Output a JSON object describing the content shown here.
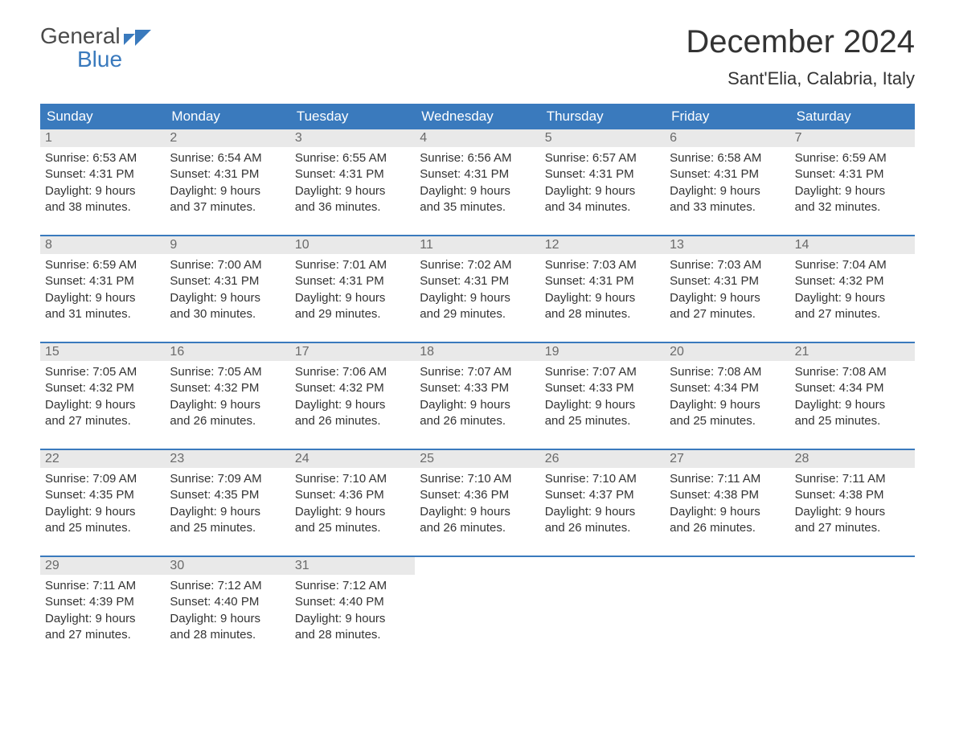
{
  "logo": {
    "line1": "General",
    "line2": "Blue"
  },
  "header": {
    "month_title": "December 2024",
    "location": "Sant'Elia, Calabria, Italy"
  },
  "colors": {
    "header_bg": "#3a7abd",
    "header_text": "#ffffff",
    "daynum_bg": "#e9e9e9",
    "daynum_text": "#6a6a6a",
    "body_text": "#333333",
    "week_border": "#3a7abd",
    "page_bg": "#ffffff"
  },
  "typography": {
    "month_fontsize": 40,
    "location_fontsize": 22,
    "dow_fontsize": 17,
    "daynum_fontsize": 16,
    "daybody_fontsize": 15
  },
  "calendar": {
    "type": "table",
    "columns": [
      "Sunday",
      "Monday",
      "Tuesday",
      "Wednesday",
      "Thursday",
      "Friday",
      "Saturday"
    ],
    "weeks": [
      [
        {
          "num": "1",
          "sunrise": "Sunrise: 6:53 AM",
          "sunset": "Sunset: 4:31 PM",
          "daylight1": "Daylight: 9 hours",
          "daylight2": "and 38 minutes."
        },
        {
          "num": "2",
          "sunrise": "Sunrise: 6:54 AM",
          "sunset": "Sunset: 4:31 PM",
          "daylight1": "Daylight: 9 hours",
          "daylight2": "and 37 minutes."
        },
        {
          "num": "3",
          "sunrise": "Sunrise: 6:55 AM",
          "sunset": "Sunset: 4:31 PM",
          "daylight1": "Daylight: 9 hours",
          "daylight2": "and 36 minutes."
        },
        {
          "num": "4",
          "sunrise": "Sunrise: 6:56 AM",
          "sunset": "Sunset: 4:31 PM",
          "daylight1": "Daylight: 9 hours",
          "daylight2": "and 35 minutes."
        },
        {
          "num": "5",
          "sunrise": "Sunrise: 6:57 AM",
          "sunset": "Sunset: 4:31 PM",
          "daylight1": "Daylight: 9 hours",
          "daylight2": "and 34 minutes."
        },
        {
          "num": "6",
          "sunrise": "Sunrise: 6:58 AM",
          "sunset": "Sunset: 4:31 PM",
          "daylight1": "Daylight: 9 hours",
          "daylight2": "and 33 minutes."
        },
        {
          "num": "7",
          "sunrise": "Sunrise: 6:59 AM",
          "sunset": "Sunset: 4:31 PM",
          "daylight1": "Daylight: 9 hours",
          "daylight2": "and 32 minutes."
        }
      ],
      [
        {
          "num": "8",
          "sunrise": "Sunrise: 6:59 AM",
          "sunset": "Sunset: 4:31 PM",
          "daylight1": "Daylight: 9 hours",
          "daylight2": "and 31 minutes."
        },
        {
          "num": "9",
          "sunrise": "Sunrise: 7:00 AM",
          "sunset": "Sunset: 4:31 PM",
          "daylight1": "Daylight: 9 hours",
          "daylight2": "and 30 minutes."
        },
        {
          "num": "10",
          "sunrise": "Sunrise: 7:01 AM",
          "sunset": "Sunset: 4:31 PM",
          "daylight1": "Daylight: 9 hours",
          "daylight2": "and 29 minutes."
        },
        {
          "num": "11",
          "sunrise": "Sunrise: 7:02 AM",
          "sunset": "Sunset: 4:31 PM",
          "daylight1": "Daylight: 9 hours",
          "daylight2": "and 29 minutes."
        },
        {
          "num": "12",
          "sunrise": "Sunrise: 7:03 AM",
          "sunset": "Sunset: 4:31 PM",
          "daylight1": "Daylight: 9 hours",
          "daylight2": "and 28 minutes."
        },
        {
          "num": "13",
          "sunrise": "Sunrise: 7:03 AM",
          "sunset": "Sunset: 4:31 PM",
          "daylight1": "Daylight: 9 hours",
          "daylight2": "and 27 minutes."
        },
        {
          "num": "14",
          "sunrise": "Sunrise: 7:04 AM",
          "sunset": "Sunset: 4:32 PM",
          "daylight1": "Daylight: 9 hours",
          "daylight2": "and 27 minutes."
        }
      ],
      [
        {
          "num": "15",
          "sunrise": "Sunrise: 7:05 AM",
          "sunset": "Sunset: 4:32 PM",
          "daylight1": "Daylight: 9 hours",
          "daylight2": "and 27 minutes."
        },
        {
          "num": "16",
          "sunrise": "Sunrise: 7:05 AM",
          "sunset": "Sunset: 4:32 PM",
          "daylight1": "Daylight: 9 hours",
          "daylight2": "and 26 minutes."
        },
        {
          "num": "17",
          "sunrise": "Sunrise: 7:06 AM",
          "sunset": "Sunset: 4:32 PM",
          "daylight1": "Daylight: 9 hours",
          "daylight2": "and 26 minutes."
        },
        {
          "num": "18",
          "sunrise": "Sunrise: 7:07 AM",
          "sunset": "Sunset: 4:33 PM",
          "daylight1": "Daylight: 9 hours",
          "daylight2": "and 26 minutes."
        },
        {
          "num": "19",
          "sunrise": "Sunrise: 7:07 AM",
          "sunset": "Sunset: 4:33 PM",
          "daylight1": "Daylight: 9 hours",
          "daylight2": "and 25 minutes."
        },
        {
          "num": "20",
          "sunrise": "Sunrise: 7:08 AM",
          "sunset": "Sunset: 4:34 PM",
          "daylight1": "Daylight: 9 hours",
          "daylight2": "and 25 minutes."
        },
        {
          "num": "21",
          "sunrise": "Sunrise: 7:08 AM",
          "sunset": "Sunset: 4:34 PM",
          "daylight1": "Daylight: 9 hours",
          "daylight2": "and 25 minutes."
        }
      ],
      [
        {
          "num": "22",
          "sunrise": "Sunrise: 7:09 AM",
          "sunset": "Sunset: 4:35 PM",
          "daylight1": "Daylight: 9 hours",
          "daylight2": "and 25 minutes."
        },
        {
          "num": "23",
          "sunrise": "Sunrise: 7:09 AM",
          "sunset": "Sunset: 4:35 PM",
          "daylight1": "Daylight: 9 hours",
          "daylight2": "and 25 minutes."
        },
        {
          "num": "24",
          "sunrise": "Sunrise: 7:10 AM",
          "sunset": "Sunset: 4:36 PM",
          "daylight1": "Daylight: 9 hours",
          "daylight2": "and 25 minutes."
        },
        {
          "num": "25",
          "sunrise": "Sunrise: 7:10 AM",
          "sunset": "Sunset: 4:36 PM",
          "daylight1": "Daylight: 9 hours",
          "daylight2": "and 26 minutes."
        },
        {
          "num": "26",
          "sunrise": "Sunrise: 7:10 AM",
          "sunset": "Sunset: 4:37 PM",
          "daylight1": "Daylight: 9 hours",
          "daylight2": "and 26 minutes."
        },
        {
          "num": "27",
          "sunrise": "Sunrise: 7:11 AM",
          "sunset": "Sunset: 4:38 PM",
          "daylight1": "Daylight: 9 hours",
          "daylight2": "and 26 minutes."
        },
        {
          "num": "28",
          "sunrise": "Sunrise: 7:11 AM",
          "sunset": "Sunset: 4:38 PM",
          "daylight1": "Daylight: 9 hours",
          "daylight2": "and 27 minutes."
        }
      ],
      [
        {
          "num": "29",
          "sunrise": "Sunrise: 7:11 AM",
          "sunset": "Sunset: 4:39 PM",
          "daylight1": "Daylight: 9 hours",
          "daylight2": "and 27 minutes."
        },
        {
          "num": "30",
          "sunrise": "Sunrise: 7:12 AM",
          "sunset": "Sunset: 4:40 PM",
          "daylight1": "Daylight: 9 hours",
          "daylight2": "and 28 minutes."
        },
        {
          "num": "31",
          "sunrise": "Sunrise: 7:12 AM",
          "sunset": "Sunset: 4:40 PM",
          "daylight1": "Daylight: 9 hours",
          "daylight2": "and 28 minutes."
        },
        null,
        null,
        null,
        null
      ]
    ]
  }
}
